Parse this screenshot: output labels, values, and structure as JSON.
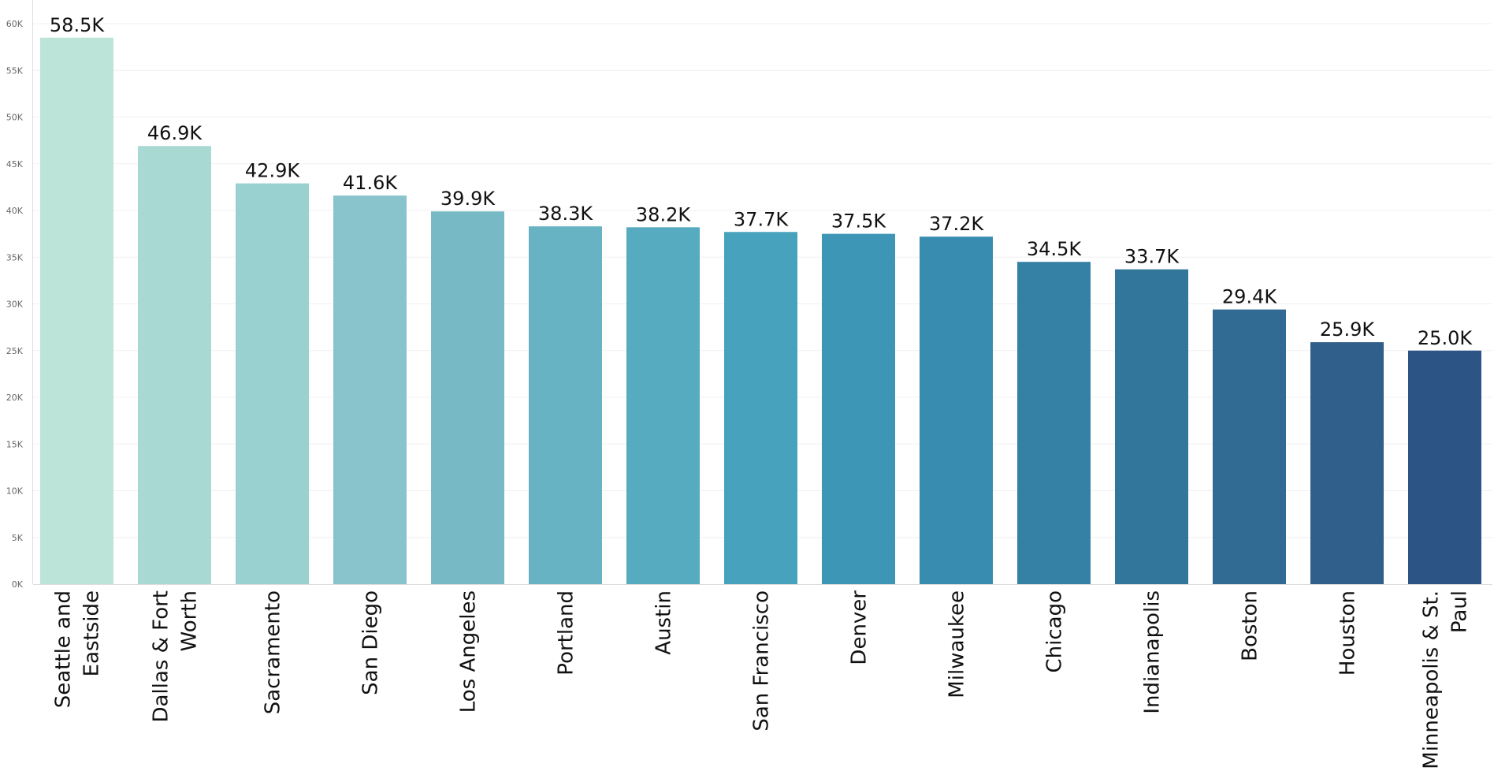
{
  "chart_data": {
    "type": "bar",
    "title": "",
    "xlabel": "",
    "ylabel": "",
    "ylim": [
      0,
      60000
    ],
    "grid": true,
    "y_ticks": [
      {
        "value": 0,
        "label": "0K"
      },
      {
        "value": 5000,
        "label": "5K"
      },
      {
        "value": 10000,
        "label": "10K"
      },
      {
        "value": 15000,
        "label": "15K"
      },
      {
        "value": 20000,
        "label": "20K"
      },
      {
        "value": 25000,
        "label": "25K"
      },
      {
        "value": 30000,
        "label": "30K"
      },
      {
        "value": 35000,
        "label": "35K"
      },
      {
        "value": 40000,
        "label": "40K"
      },
      {
        "value": 45000,
        "label": "45K"
      },
      {
        "value": 50000,
        "label": "50K"
      },
      {
        "value": 55000,
        "label": "55K"
      },
      {
        "value": 60000,
        "label": "60K"
      }
    ],
    "categories": [
      [
        "Seattle and",
        "Eastside"
      ],
      [
        "Dallas & Fort",
        "Worth"
      ],
      [
        "Sacramento"
      ],
      [
        "San Diego"
      ],
      [
        "Los Angeles"
      ],
      [
        "Portland"
      ],
      [
        "Austin"
      ],
      [
        "San Francisco"
      ],
      [
        "Denver"
      ],
      [
        "Milwaukee"
      ],
      [
        "Chicago"
      ],
      [
        "Indianapolis"
      ],
      [
        "Boston"
      ],
      [
        "Houston"
      ],
      [
        "Minneapolis & St.",
        "Paul"
      ]
    ],
    "values": [
      58500,
      46900,
      42900,
      41600,
      39900,
      38300,
      38200,
      37700,
      37500,
      37200,
      34500,
      33700,
      29400,
      25900,
      25000
    ],
    "data_labels": [
      "58.5K",
      "46.9K",
      "42.9K",
      "41.6K",
      "39.9K",
      "38.3K",
      "38.2K",
      "37.7K",
      "37.5K",
      "37.2K",
      "34.5K",
      "33.7K",
      "29.4K",
      "25.9K",
      "25.0K"
    ],
    "colors": [
      "#bce4d8",
      "#a8dad3",
      "#98d1cf",
      "#89c4cc",
      "#77bac6",
      "#67b3c3",
      "#57abc0",
      "#47a2be",
      "#3e96b7",
      "#378cb0",
      "#3581a6",
      "#33769c",
      "#316a93",
      "#2f5f8a",
      "#2c5585"
    ],
    "legend": "none"
  }
}
